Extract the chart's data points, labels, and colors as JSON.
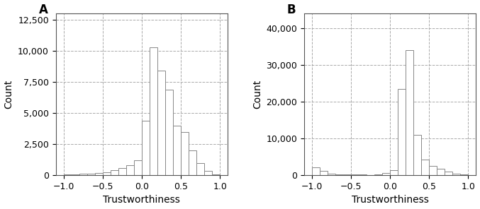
{
  "panel_A": {
    "label": "A",
    "xlabel": "Trustworthiness",
    "ylabel": "Count",
    "xlim": [
      -1.1,
      1.1
    ],
    "ylim": [
      0,
      13000
    ],
    "yticks": [
      0,
      2500,
      5000,
      7500,
      10000,
      12500
    ],
    "xticks": [
      -1.0,
      -0.5,
      0.0,
      0.5,
      1.0
    ],
    "bin_centers": [
      -0.95,
      -0.85,
      -0.75,
      -0.65,
      -0.55,
      -0.45,
      -0.35,
      -0.25,
      -0.15,
      -0.05,
      0.05,
      0.15,
      0.25,
      0.35,
      0.45,
      0.55,
      0.65,
      0.75,
      0.85,
      0.95
    ],
    "counts": [
      50,
      70,
      100,
      130,
      180,
      250,
      380,
      550,
      800,
      1200,
      4400,
      10300,
      8400,
      6900,
      4000,
      3500,
      2000,
      1000,
      350,
      80
    ]
  },
  "panel_B": {
    "label": "B",
    "xlabel": "Trustworthiness",
    "ylabel": "Count",
    "xlim": [
      -1.1,
      1.1
    ],
    "ylim": [
      0,
      44000
    ],
    "yticks": [
      0,
      10000,
      20000,
      30000,
      40000
    ],
    "xticks": [
      -1.0,
      -0.5,
      0.0,
      0.5,
      1.0
    ],
    "bin_centers": [
      -0.95,
      -0.85,
      -0.75,
      -0.65,
      -0.55,
      -0.45,
      -0.35,
      -0.25,
      -0.15,
      -0.05,
      0.05,
      0.15,
      0.25,
      0.35,
      0.45,
      0.55,
      0.65,
      0.75,
      0.85,
      0.95
    ],
    "counts": [
      2200,
      1100,
      350,
      200,
      160,
      140,
      130,
      120,
      280,
      600,
      1400,
      23500,
      34000,
      11000,
      4200,
      2600,
      1700,
      900,
      500,
      150
    ]
  },
  "bin_width": 0.1,
  "bar_facecolor": "#ffffff",
  "bar_edgecolor": "#888888",
  "bar_linewidth": 0.7,
  "grid_color": "#aaaaaa",
  "grid_linestyle": "--",
  "grid_linewidth": 0.7,
  "xlabel_fontsize": 10,
  "ylabel_fontsize": 10,
  "tick_fontsize": 9,
  "panel_label_fontsize": 12
}
